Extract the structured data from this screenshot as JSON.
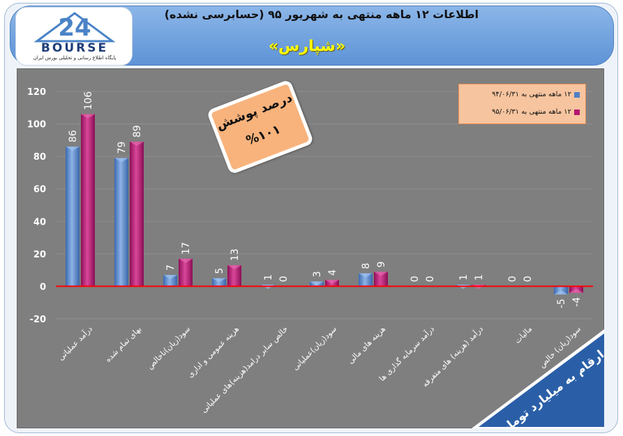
{
  "header": {
    "title": "اطلاعات ۱۲ ماهه منتهی به شهریور ۹۵ (حسابرسی نشده)",
    "subtitle": "«شپارس»",
    "logo_text": "BOURSE",
    "logo_caption": "پایگاه اطلاع رسانی و تحلیلی بورس ایران"
  },
  "coverage_box": {
    "line1": "درصد پوشش",
    "line2": "%۱۰۱"
  },
  "units_banner": "ارقام به میلیارد تومان",
  "colors": {
    "chart_bg": "#7f7f7f",
    "series1": "#4f7fc6",
    "series2": "#b3176f",
    "zero_line": "#ff0000",
    "legend_bg": "#f6c49f",
    "coverage_bg": "#f8b37c"
  },
  "chart_data": {
    "type": "bar",
    "title": "",
    "xlabel": "",
    "ylabel": "",
    "ylim": [
      -20,
      120
    ],
    "yticks": [
      "120",
      "100",
      "80",
      "60",
      "40",
      "20",
      "0",
      "-20"
    ],
    "grid": true,
    "legend_position": "top-right",
    "categories": [
      "درآمد عملیاتی",
      "بهای تمام شده",
      "سود(زیان)ناخالص",
      "هزینه عمومی و اداری",
      "خالص سایر درامد(هزینه)های عملیاتی",
      "سود(زیان)عملیاتی",
      "هزینه های مالی",
      "درآمد سرمایه گذاری ها",
      "درآمد (هزینه) های متفرقه",
      "مالیات",
      "سود(زیان) خالص"
    ],
    "series": [
      {
        "name": "۱۲ ماهه منتهی به ۹۴/۰۶/۳۱",
        "values": [
          86,
          79,
          7,
          5,
          1,
          3,
          8,
          0,
          1,
          0,
          -5
        ],
        "labels": [
          "86",
          "79",
          "7",
          "5",
          "1",
          "3",
          "8",
          "0",
          "1",
          "0",
          "-5"
        ]
      },
      {
        "name": "۱۲ ماهه منتهی به ۹۵/۰۶/۳۱",
        "values": [
          106,
          89,
          17,
          13,
          0,
          4,
          9,
          0,
          1,
          0,
          -4
        ],
        "labels": [
          "106",
          "89",
          "17",
          "13",
          "0",
          "4",
          "9",
          "0",
          "1",
          "0",
          "-4"
        ]
      }
    ]
  }
}
